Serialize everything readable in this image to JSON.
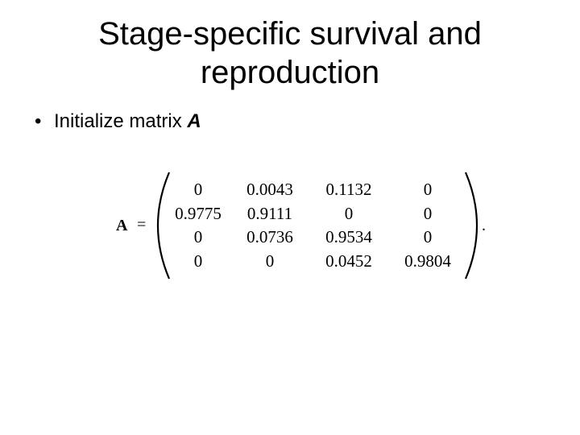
{
  "slide": {
    "title_lines": [
      "Stage-specific survival and",
      "reproduction"
    ],
    "bullet": {
      "symbol": "•",
      "text": "Initialize matrix ",
      "emphasis": "A"
    },
    "equation": {
      "variable": "A",
      "equals": "=",
      "period": ".",
      "matrix": [
        [
          "0",
          "0.0043",
          "0.1132",
          "0"
        ],
        [
          "0.9775",
          "0.9111",
          "0",
          "0"
        ],
        [
          "0",
          "0.0736",
          "0.9534",
          "0"
        ],
        [
          "0",
          "0",
          "0.0452",
          "0.9804"
        ]
      ]
    }
  }
}
